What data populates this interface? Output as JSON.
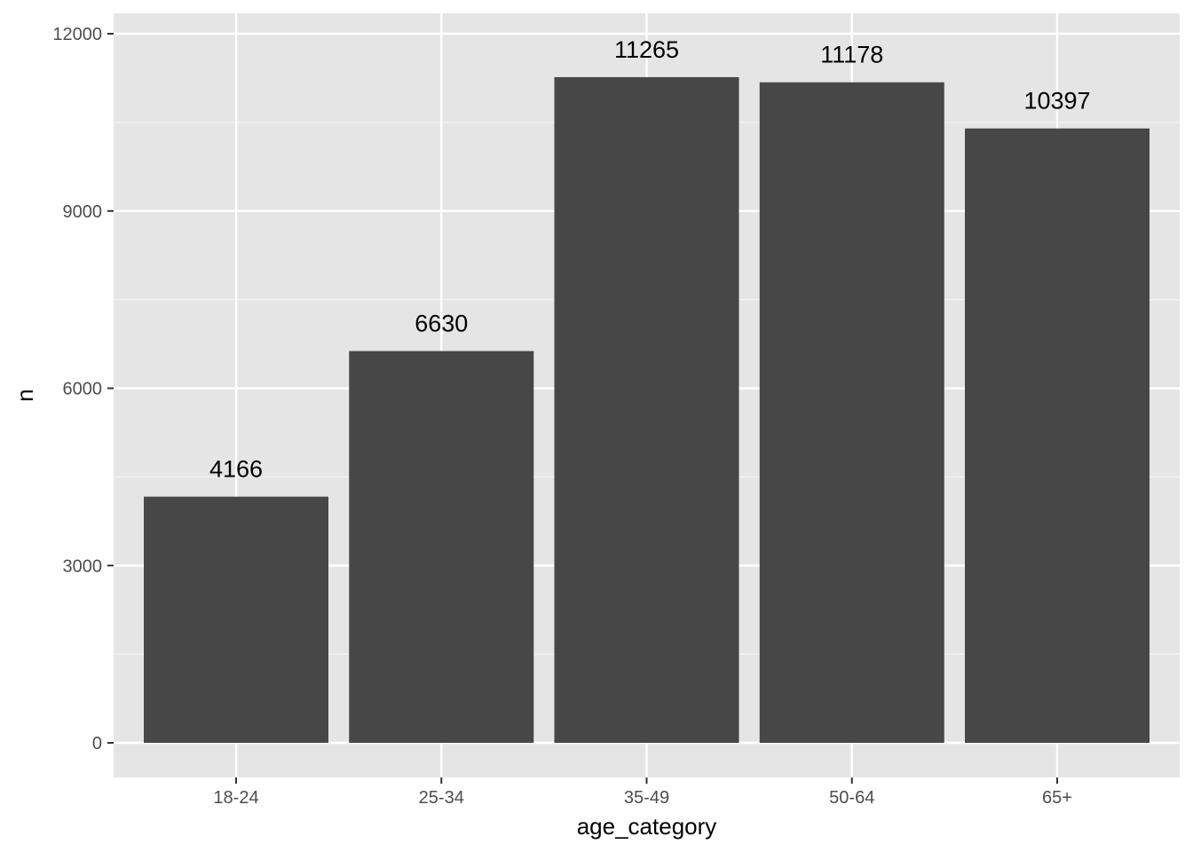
{
  "chart_data": {
    "type": "bar",
    "categories": [
      "18-24",
      "25-34",
      "35-49",
      "50-64",
      "65+"
    ],
    "values": [
      4166,
      6630,
      11265,
      11178,
      10397
    ],
    "data_labels": [
      "4166",
      "6630",
      "11265",
      "11178",
      "10397"
    ],
    "title": "",
    "xlabel": "age_category",
    "ylabel": "n",
    "ylim": [
      0,
      12000
    ],
    "yticks": [
      0,
      3000,
      6000,
      9000,
      12000
    ],
    "ytick_labels": [
      "0",
      "3000",
      "6000",
      "9000",
      "12000"
    ],
    "grid": true,
    "legend": "none",
    "colors": {
      "panel_background": "#e5e5e5",
      "grid_major": "#ffffff",
      "grid_minor": "#f2f2f2",
      "bar_fill": "#474747",
      "tick_mark": "#333333"
    }
  }
}
